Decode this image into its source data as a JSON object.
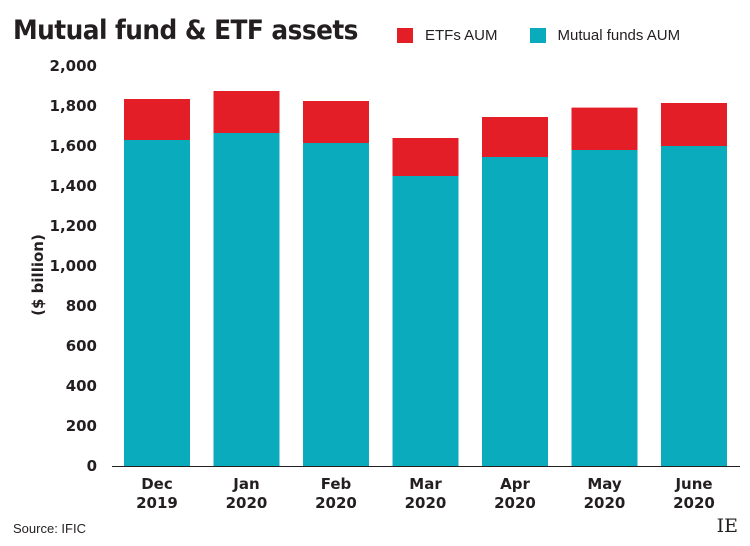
{
  "chart_data": {
    "type": "bar",
    "stacked": true,
    "title": "Mutual fund & ETF assets",
    "ylabel": "($ billion)",
    "xlabel": "",
    "ylim": [
      0,
      2000
    ],
    "yticks": [
      "0",
      "200",
      "400",
      "600",
      "800",
      "1,000",
      "1,200",
      "1,400",
      "1,600",
      "1,800",
      "2,000"
    ],
    "ytick_values": [
      0,
      200,
      400,
      600,
      800,
      1000,
      1200,
      1400,
      1600,
      1800,
      2000
    ],
    "grid": false,
    "legend_position": "top-right",
    "categories": [
      [
        "Dec",
        "2019"
      ],
      [
        "Jan",
        "2020"
      ],
      [
        "Feb",
        "2020"
      ],
      [
        "Mar",
        "2020"
      ],
      [
        "Apr",
        "2020"
      ],
      [
        "May",
        "2020"
      ],
      [
        "June",
        "2020"
      ]
    ],
    "series": [
      {
        "name": "Mutual funds AUM",
        "color": "#0aabbd",
        "values": [
          1630,
          1665,
          1615,
          1450,
          1545,
          1580,
          1600
        ]
      },
      {
        "name": "ETFs AUM",
        "color": "#e31e26",
        "values": [
          205,
          210,
          210,
          190,
          200,
          212,
          215
        ]
      }
    ],
    "legend_order": [
      1,
      0
    ],
    "source": "Source: IFIC",
    "publisher": "IE"
  }
}
